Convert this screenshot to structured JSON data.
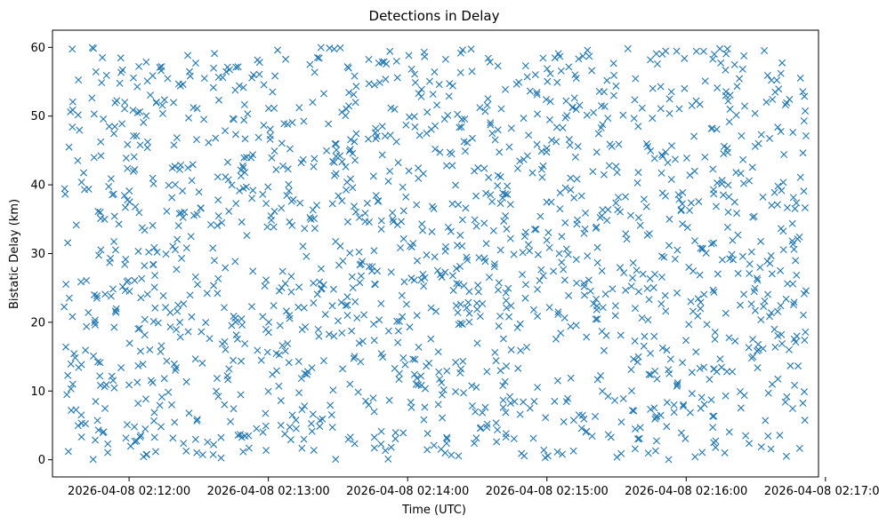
{
  "chart_data": {
    "type": "scatter",
    "title": "Detections in Delay",
    "xlabel": "Time (UTC)",
    "ylabel": "Bistatic Delay (km)",
    "x_start": "2026-04-08 02:11:32",
    "x_end": "2026-04-08 02:16:52",
    "xlim": [
      "2026-04-08 02:11:27",
      "2026-04-08 02:16:57"
    ],
    "ylim": [
      -2.5,
      62.5
    ],
    "xticks": [
      "2026-04-08 02:12:00",
      "2026-04-08 02:13:00",
      "2026-04-08 02:14:00",
      "2026-04-08 02:15:00",
      "2026-04-08 02:16:00",
      "2026-04-08 02:17:00"
    ],
    "yticks": [
      "0",
      "10",
      "20",
      "30",
      "40",
      "50",
      "60"
    ],
    "y_range": [
      0,
      60
    ],
    "point_count": 1600,
    "marker": "x",
    "color": "#1f77b4",
    "grid": false,
    "legend": "none"
  }
}
